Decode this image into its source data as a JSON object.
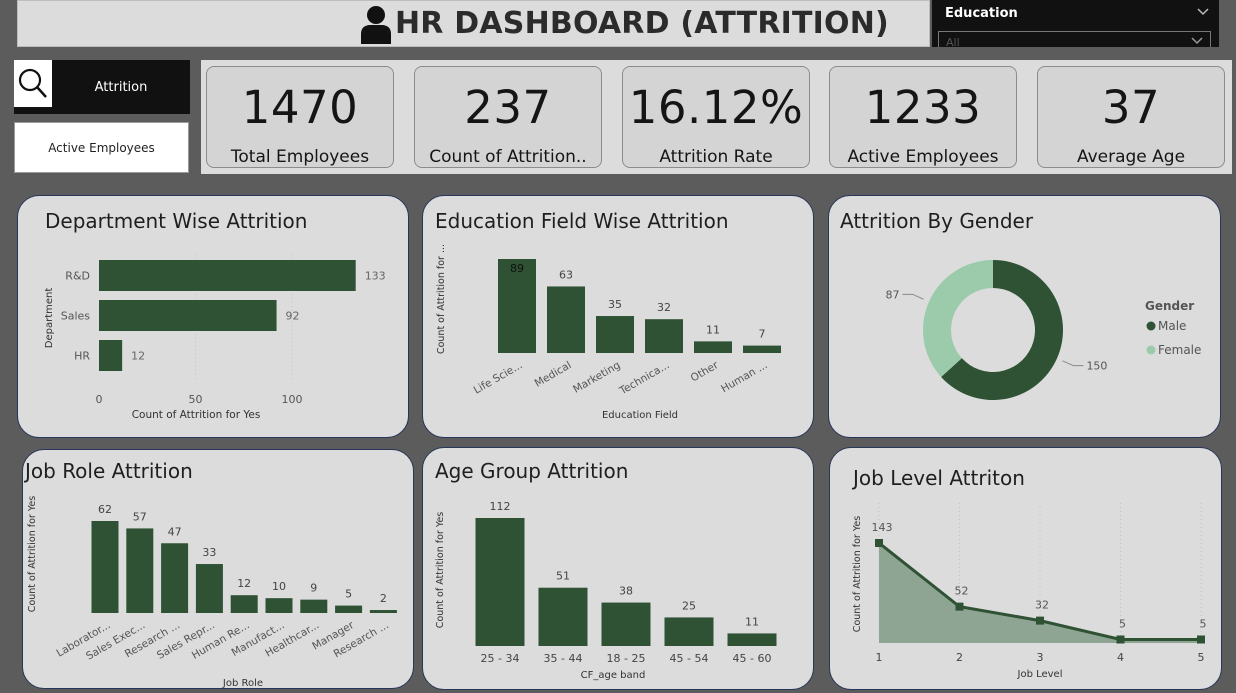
{
  "header": {
    "title": "HR DASHBOARD (ATTRITION)",
    "slicer_title": "Education",
    "slicer_value": "All"
  },
  "buttons": {
    "attrition": "Attrition",
    "active_employees": "Active Employees"
  },
  "kpis": [
    {
      "value": "1470",
      "label": "Total Employees"
    },
    {
      "value": "237",
      "label": "Count of Attrition.."
    },
    {
      "value": "16.12%",
      "label": "Attrition Rate"
    },
    {
      "value": "1233",
      "label": "Active Employees"
    },
    {
      "value": "37",
      "label": "Average Age"
    }
  ],
  "colors": {
    "bar": "#2e5233",
    "donut_male": "#2e5233",
    "donut_female": "#9ccbab",
    "area_fill": "#8fa593"
  },
  "chart_data": [
    {
      "id": "dept",
      "type": "bar",
      "orientation": "horizontal",
      "title": "Department Wise Attrition",
      "categories": [
        "R&D",
        "Sales",
        "HR"
      ],
      "values": [
        133,
        92,
        12
      ],
      "xlabel": "Count of Attrition for Yes",
      "ylabel": "Department",
      "xticks": [
        "0",
        "50",
        "100"
      ],
      "xlim": [
        0,
        140
      ]
    },
    {
      "id": "edu",
      "type": "bar",
      "title": "Education Field Wise Attrition",
      "categories": [
        "Life Scie...",
        "Medical",
        "Marketing",
        "Technica...",
        "Other",
        "Human ..."
      ],
      "values": [
        89,
        63,
        35,
        32,
        11,
        7
      ],
      "xlabel": "Education Field",
      "ylabel": "Count of Attrition for ..."
    },
    {
      "id": "gender",
      "type": "pie",
      "variant": "donut",
      "title": "Attrition By Gender",
      "legend_title": "Gender",
      "labels": [
        "Male",
        "Female"
      ],
      "values": [
        150,
        87
      ],
      "legend": "right"
    },
    {
      "id": "role",
      "type": "bar",
      "title": "Job Role Attrition",
      "categories": [
        "Laborator...",
        "Sales Exec...",
        "Research ...",
        "Sales Repr...",
        "Human Re...",
        "Manufact...",
        "Healthcar...",
        "Manager",
        "Research ..."
      ],
      "values": [
        62,
        57,
        47,
        33,
        12,
        10,
        9,
        5,
        2
      ],
      "xlabel": "Job Role",
      "ylabel": "Count of Attrition for Yes"
    },
    {
      "id": "age",
      "type": "bar",
      "title": "Age Group Attrition",
      "categories": [
        "25 - 34",
        "35 - 44",
        "18 - 25",
        "45 - 54",
        "45 - 60"
      ],
      "values": [
        112,
        51,
        38,
        25,
        11
      ],
      "xlabel": "CF_age band",
      "ylabel": "Count of Attrition for Yes"
    },
    {
      "id": "level",
      "type": "area",
      "title": "Job Level Attriton",
      "x": [
        "1",
        "2",
        "3",
        "4",
        "5"
      ],
      "values": [
        143,
        52,
        32,
        5,
        5
      ],
      "xlabel": "Job Level",
      "ylabel": "Count of Attrition for Yes"
    }
  ]
}
